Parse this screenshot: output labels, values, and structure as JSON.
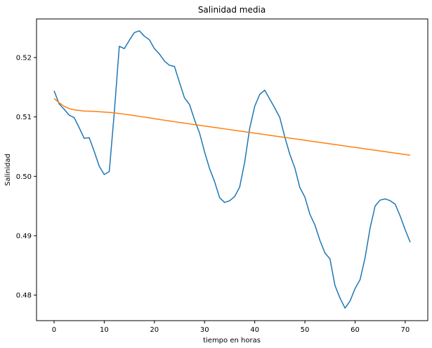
{
  "chart_data": {
    "type": "line",
    "title": "Salinidad media",
    "xlabel": "tiempo en horas",
    "ylabel": "Salinidad",
    "xlim": [
      -3.5,
      74.5
    ],
    "ylim": [
      0.4757,
      0.5265
    ],
    "x_ticks": [
      0,
      10,
      20,
      30,
      40,
      50,
      60,
      70
    ],
    "y_ticks": [
      0.48,
      0.49,
      0.5,
      0.51,
      0.52
    ],
    "y_tick_labels": [
      "0.48",
      "0.49",
      "0.50",
      "0.51",
      "0.52"
    ],
    "grid": false,
    "series": [
      {
        "color": "#1f77b4",
        "x": [
          0,
          1,
          2,
          3,
          4,
          5,
          6,
          7,
          8,
          9,
          10,
          11,
          12,
          13,
          14,
          15,
          16,
          17,
          18,
          19,
          20,
          21,
          22,
          23,
          24,
          25,
          26,
          27,
          28,
          29,
          30,
          31,
          32,
          33,
          34,
          35,
          36,
          37,
          38,
          39,
          40,
          41,
          42,
          43,
          44,
          45,
          46,
          47,
          48,
          49,
          50,
          51,
          52,
          53,
          54,
          55,
          56,
          57,
          58,
          59,
          60,
          61,
          62,
          63,
          64,
          65,
          66,
          67,
          68,
          69,
          70,
          71
        ],
        "y": [
          0.5144,
          0.5122,
          0.5113,
          0.5103,
          0.5099,
          0.5082,
          0.5064,
          0.5065,
          0.5042,
          0.5017,
          0.5003,
          0.5008,
          0.5107,
          0.5219,
          0.5215,
          0.5229,
          0.5242,
          0.5245,
          0.5236,
          0.523,
          0.5215,
          0.5206,
          0.5194,
          0.5187,
          0.5185,
          0.5158,
          0.5132,
          0.5121,
          0.5095,
          0.5073,
          0.5041,
          0.5013,
          0.4991,
          0.4964,
          0.4956,
          0.4959,
          0.4966,
          0.4982,
          0.5024,
          0.5081,
          0.5118,
          0.5138,
          0.5145,
          0.513,
          0.5115,
          0.5099,
          0.5066,
          0.5037,
          0.5014,
          0.4981,
          0.4965,
          0.4936,
          0.4918,
          0.4892,
          0.4871,
          0.4861,
          0.4816,
          0.4795,
          0.4778,
          0.479,
          0.4811,
          0.4826,
          0.4863,
          0.4913,
          0.495,
          0.496,
          0.4962,
          0.4959,
          0.4953,
          0.4933,
          0.491,
          0.4889
        ]
      },
      {
        "color": "#ff7f0e",
        "x": [
          0,
          1,
          2,
          3,
          4,
          5,
          6,
          7,
          8,
          9,
          10,
          11,
          12,
          13,
          14,
          15,
          16,
          17,
          18,
          19,
          20,
          21,
          22,
          23,
          24,
          25,
          26,
          27,
          28,
          29,
          30,
          31,
          32,
          33,
          34,
          35,
          36,
          37,
          38,
          39,
          40,
          41,
          42,
          43,
          44,
          45,
          46,
          47,
          48,
          49,
          50,
          51,
          52,
          53,
          54,
          55,
          56,
          57,
          58,
          59,
          60,
          61,
          62,
          63,
          64,
          65,
          66,
          67,
          68,
          69,
          70,
          71
        ],
        "y": [
          0.5131,
          0.5124,
          0.5118,
          0.5114,
          0.5112,
          0.5111,
          0.511,
          0.51097,
          0.51094,
          0.51088,
          0.51082,
          0.51076,
          0.51068,
          0.51058,
          0.51047,
          0.51035,
          0.51023,
          0.5101,
          0.50997,
          0.50984,
          0.50971,
          0.50958,
          0.50945,
          0.50932,
          0.5092,
          0.50907,
          0.50895,
          0.50883,
          0.50871,
          0.50859,
          0.50847,
          0.50835,
          0.50823,
          0.50811,
          0.50799,
          0.50787,
          0.50775,
          0.50763,
          0.50751,
          0.50739,
          0.50727,
          0.50715,
          0.50703,
          0.50691,
          0.50679,
          0.50667,
          0.50655,
          0.50643,
          0.50631,
          0.50619,
          0.50607,
          0.50595,
          0.50583,
          0.50571,
          0.50559,
          0.50547,
          0.50535,
          0.50523,
          0.50511,
          0.50499,
          0.50487,
          0.50475,
          0.50463,
          0.50451,
          0.50439,
          0.50427,
          0.50415,
          0.50403,
          0.50391,
          0.50379,
          0.50367,
          0.50355
        ]
      }
    ]
  }
}
